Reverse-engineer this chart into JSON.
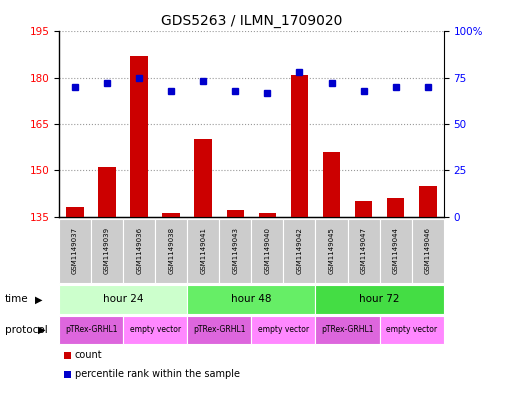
{
  "title": "GDS5263 / ILMN_1709020",
  "samples": [
    "GSM1149037",
    "GSM1149039",
    "GSM1149036",
    "GSM1149038",
    "GSM1149041",
    "GSM1149043",
    "GSM1149040",
    "GSM1149042",
    "GSM1149045",
    "GSM1149047",
    "GSM1149044",
    "GSM1149046"
  ],
  "counts": [
    138,
    151,
    187,
    136,
    160,
    137,
    136,
    181,
    156,
    140,
    141,
    145
  ],
  "percentile_ranks": [
    70,
    72,
    75,
    68,
    73,
    68,
    67,
    78,
    72,
    68,
    70,
    70
  ],
  "ylim_left": [
    135,
    195
  ],
  "ylim_right": [
    0,
    100
  ],
  "yticks_left": [
    135,
    150,
    165,
    180,
    195
  ],
  "yticks_right": [
    0,
    25,
    50,
    75,
    100
  ],
  "bar_color": "#cc0000",
  "dot_color": "#0000cc",
  "time_groups": [
    {
      "label": "hour 24",
      "start": 0,
      "end": 4,
      "color": "#ccffcc"
    },
    {
      "label": "hour 48",
      "start": 4,
      "end": 8,
      "color": "#66ee66"
    },
    {
      "label": "hour 72",
      "start": 8,
      "end": 12,
      "color": "#44dd44"
    }
  ],
  "protocol_groups": [
    {
      "label": "pTRex-GRHL1",
      "start": 0,
      "end": 2,
      "color": "#dd66dd"
    },
    {
      "label": "empty vector",
      "start": 2,
      "end": 4,
      "color": "#ff88ff"
    },
    {
      "label": "pTRex-GRHL1",
      "start": 4,
      "end": 6,
      "color": "#dd66dd"
    },
    {
      "label": "empty vector",
      "start": 6,
      "end": 8,
      "color": "#ff88ff"
    },
    {
      "label": "pTRex-GRHL1",
      "start": 8,
      "end": 10,
      "color": "#dd66dd"
    },
    {
      "label": "empty vector",
      "start": 10,
      "end": 12,
      "color": "#ff88ff"
    }
  ],
  "legend_items": [
    {
      "label": "count",
      "color": "#cc0000"
    },
    {
      "label": "percentile rank within the sample",
      "color": "#0000cc"
    }
  ],
  "grid_dotted_color": "#999999",
  "bg_color": "#ffffff",
  "sample_box_color": "#cccccc",
  "time_label": "time",
  "protocol_label": "protocol"
}
